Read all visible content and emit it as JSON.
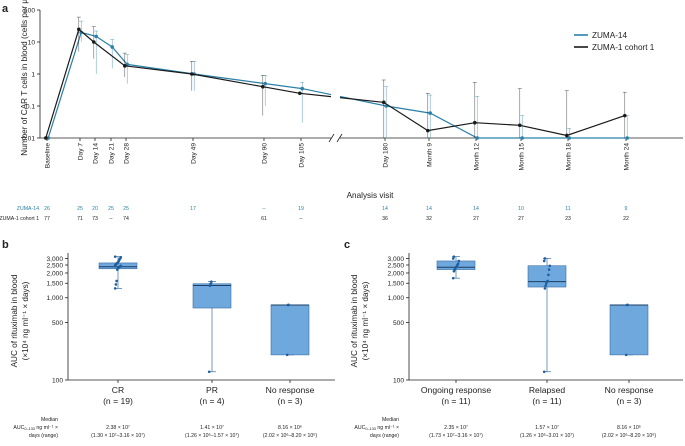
{
  "chart_data": [
    {
      "panel": "a",
      "type": "line",
      "title": "",
      "xlabel": "Analysis visit",
      "ylabel": "Number of CAR T cells in blood (cells per µl)",
      "yscale": "log",
      "ylim": [
        0.01,
        100
      ],
      "yticks": [
        "0.01",
        "0.1",
        "1",
        "10",
        "100"
      ],
      "x_labels": [
        "Baseline",
        "Day 7",
        "Day 14",
        "Day 21",
        "Day 28",
        "Day 49",
        "Day 90",
        "Day 105",
        "Day 180",
        "Month 9",
        "Month 12",
        "Month 15",
        "Month 18",
        "Month 24"
      ],
      "axis_break_between": [
        "Day 105",
        "Day 180"
      ],
      "legend": [
        "ZUMA-14",
        "ZUMA-1 cohort 1"
      ],
      "legend_position": "top-right",
      "colors": {
        "zuma14": "#2a80a8",
        "zuma1": "#1a1a1a"
      },
      "series": [
        {
          "name": "ZUMA-14",
          "points": [
            {
              "x": "Baseline",
              "y": 0.01
            },
            {
              "x": "Day 7",
              "y": 20,
              "lo": 10,
              "hi": 45
            },
            {
              "x": "Day 14",
              "y": 15,
              "lo": 1,
              "hi": 22
            },
            {
              "x": "Day 21",
              "y": 7,
              "lo": 1.5,
              "hi": 12
            },
            {
              "x": "Day 28",
              "y": 2,
              "lo": 0.5,
              "hi": 4
            },
            {
              "x": "Day 49",
              "y": 1,
              "lo": 0.3,
              "hi": 2.5
            },
            {
              "x": "Day 90",
              "y": 0.5,
              "lo": 0.1,
              "hi": 0.9
            },
            {
              "x": "Day 105",
              "y": 0.35,
              "lo": 0.03,
              "hi": 0.55
            },
            {
              "x": "Day 180",
              "y": 0.1,
              "lo": 0.01,
              "hi": 0.4
            },
            {
              "x": "Month 9",
              "y": 0.06,
              "lo": 0.01,
              "hi": 0.22
            },
            {
              "x": "Month 12",
              "y": 0.01,
              "lo": 0.01,
              "hi": 0.2
            },
            {
              "x": "Month 15",
              "y": 0.01,
              "lo": 0.01,
              "hi": 0.05
            },
            {
              "x": "Month 18",
              "y": 0.01,
              "lo": 0.01,
              "hi": 0.02
            },
            {
              "x": "Month 24",
              "y": 0.01,
              "lo": 0.01,
              "hi": 0.05
            }
          ]
        },
        {
          "name": "ZUMA-1 cohort 1",
          "points": [
            {
              "x": "Baseline",
              "y": 0.01
            },
            {
              "x": "Day 7",
              "y": 25,
              "lo": 5,
              "hi": 60
            },
            {
              "x": "Day 14",
              "y": 10,
              "lo": 3,
              "hi": 30
            },
            {
              "x": "Day 28",
              "y": 1.8,
              "lo": 0.8,
              "hi": 4.5
            },
            {
              "x": "Day 49",
              "y": 1,
              "lo": 0.3,
              "hi": 2.5
            },
            {
              "x": "Day 90",
              "y": 0.4,
              "lo": 0.05,
              "hi": 0.9
            },
            {
              "x": "Day 105",
              "y": 0.25
            },
            {
              "x": "Day 180",
              "y": 0.13,
              "lo": 0.01,
              "hi": 0.65
            },
            {
              "x": "Month 9",
              "y": 0.017,
              "lo": 0.01,
              "hi": 0.25
            },
            {
              "x": "Month 12",
              "y": 0.03,
              "lo": 0.01,
              "hi": 0.55
            },
            {
              "x": "Month 15",
              "y": 0.025,
              "lo": 0.01,
              "hi": 0.35
            },
            {
              "x": "Month 18",
              "y": 0.012,
              "lo": 0.01,
              "hi": 0.3
            },
            {
              "x": "Month 24",
              "y": 0.05,
              "lo": 0.01,
              "hi": 0.27
            }
          ]
        }
      ],
      "at_risk": {
        "zuma14_label": "ZUMA-14",
        "zuma1_label": "ZUMA-1 cohort 1",
        "zuma14": [
          "26",
          "25",
          "20",
          "25",
          "25",
          "17",
          "–",
          "19",
          "14",
          "14",
          "14",
          "10",
          "11",
          "9"
        ],
        "zuma1": [
          "77",
          "71",
          "73",
          "–",
          "74",
          "",
          "61",
          "–",
          "36",
          "32",
          "27",
          "27",
          "23",
          "22"
        ]
      }
    },
    {
      "panel": "b",
      "type": "box",
      "ylabel_line1": "AUC of rituximab in blood",
      "ylabel_line2": "(×10⁴ ng ml⁻¹ × days)",
      "yscale": "log",
      "ylim": [
        100,
        3500
      ],
      "yticks": [
        "100",
        "500",
        "1,000",
        "1,500",
        "2,000",
        "2,500",
        "3,000"
      ],
      "color": "#6fa8dc",
      "groups": [
        {
          "name": "CR",
          "n": "(n = 19)",
          "min": 1300,
          "q1": 2250,
          "median": 2380,
          "q3": 2650,
          "max": 3160,
          "points": [
            1300,
            1450,
            1600,
            2200,
            2300,
            2350,
            2380,
            2400,
            2450,
            2500,
            2550,
            2600,
            2650,
            2700,
            2800,
            2900,
            3000,
            3100,
            3160
          ]
        },
        {
          "name": "PR",
          "n": "(n = 4)",
          "min": 126,
          "q1": 750,
          "median": 1410,
          "q3": 1480,
          "max": 1570,
          "points": [
            126,
            1400,
            1480,
            1570
          ]
        },
        {
          "name": "No response",
          "n": "(n = 3)",
          "min": 202,
          "q1": 202,
          "median": 816,
          "q3": 816,
          "max": 820,
          "points": [
            202,
            816,
            820
          ]
        }
      ],
      "median_header": "Median",
      "median_label": "AUC",
      "median_range_label": "ng ml⁻¹ ×",
      "median_range_label2": "days (range)",
      "medians": [
        {
          "value": "2.38 × 10⁷",
          "range": "(1.30 × 10⁷–3.16 × 10⁷)"
        },
        {
          "value": "1.41 × 10⁷",
          "range": "(1.26 × 10⁶–1.57 × 10⁷)"
        },
        {
          "value": "8.16 × 10⁶",
          "range": "(2.02 × 10⁶–8.20 × 10⁶)"
        }
      ]
    },
    {
      "panel": "c",
      "type": "box",
      "ylabel_line1": "AUC of rituximab in blood",
      "ylabel_line2": "(×10⁴ ng ml⁻¹ × days)",
      "yscale": "log",
      "ylim": [
        100,
        3500
      ],
      "yticks": [
        "100",
        "500",
        "1,000",
        "1,500",
        "2,000",
        "2,500",
        "3,000"
      ],
      "color": "#6fa8dc",
      "groups": [
        {
          "name": "Ongoing response",
          "n": "(n = 11)",
          "min": 1730,
          "q1": 2200,
          "median": 2350,
          "q3": 2800,
          "max": 3160,
          "points": [
            1730,
            2100,
            2200,
            2300,
            2350,
            2400,
            2500,
            2600,
            2800,
            3000,
            3160
          ]
        },
        {
          "name": "Relapsed",
          "n": "(n = 11)",
          "min": 126,
          "q1": 1350,
          "median": 1570,
          "q3": 2450,
          "max": 3010,
          "points": [
            126,
            1300,
            1400,
            1500,
            1570,
            1600,
            1900,
            2200,
            2450,
            2800,
            3010
          ]
        },
        {
          "name": "No response",
          "n": "(n = 3)",
          "min": 202,
          "q1": 202,
          "median": 816,
          "q3": 816,
          "max": 820,
          "points": [
            202,
            816,
            820
          ]
        }
      ],
      "median_header": "Median",
      "median_label": "AUC",
      "median_range_label": "ng ml⁻¹ ×",
      "median_range_label2": "days (range)",
      "medians": [
        {
          "value": "2.35 × 10⁷",
          "range": "(1.73 × 10⁷–3.16 × 10⁷)"
        },
        {
          "value": "1.57 × 10⁷",
          "range": "(1.26 × 10⁶–3.01 × 10⁷)"
        },
        {
          "value": "8.16 × 10⁶",
          "range": "(2.02 × 10⁶–8.20 × 10⁶)"
        }
      ]
    }
  ],
  "labels": {
    "a": "a",
    "b": "b",
    "c": "c"
  }
}
